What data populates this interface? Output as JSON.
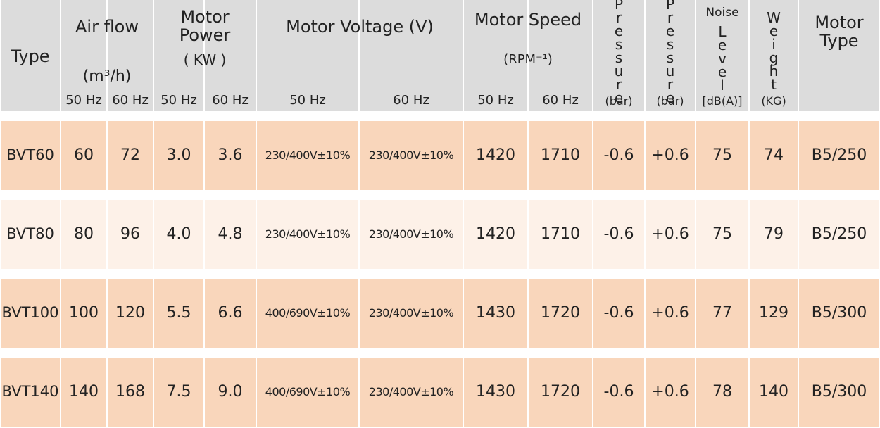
{
  "header": {
    "type": "Type",
    "air_flow": "Air flow",
    "air_flow_unit": "(m³/h)",
    "motor_power": "Motor Power",
    "motor_power_unit": "( KW )",
    "motor_voltage": "Motor Voltage (V)",
    "motor_speed": "Motor Speed",
    "motor_speed_unit": "(RPM⁻¹)",
    "pressure_1": "Pressure",
    "pressure_1_unit": "(bar)",
    "pressure_2": "Pressure",
    "pressure_2_unit": "(bar)",
    "noise": "Noise",
    "noise_level": "Level",
    "noise_unit": "[dB(A)]",
    "weight": "Weight",
    "weight_unit": "(KG)",
    "motor_type": "Motor Type",
    "frequencies": [
      "50 Hz",
      "60 Hz",
      "50 Hz",
      "60 Hz",
      "50 Hz",
      "60 Hz",
      "50 Hz",
      "60 Hz"
    ]
  },
  "table": {
    "rows": [
      [
        "BVT60",
        "60",
        "72",
        "3.0",
        "3.6",
        "230/400V±10%",
        "230/400V±10%",
        "1420",
        "1710",
        "-0.6",
        "+0.6",
        "75",
        "74",
        "B5/250"
      ],
      [
        "BVT80",
        "80",
        "96",
        "4.0",
        "4.8",
        "230/400V±10%",
        "230/400V±10%",
        "1420",
        "1710",
        "-0.6",
        "+0.6",
        "75",
        "79",
        "B5/250"
      ],
      [
        "BVT100",
        "100",
        "120",
        "5.5",
        "6.6",
        "400/690V±10%",
        "230/400V±10%",
        "1430",
        "1720",
        "-0.6",
        "+0.6",
        "77",
        "129",
        "B5/300"
      ],
      [
        "BVT140",
        "140",
        "168",
        "7.5",
        "9.0",
        "400/690V±10%",
        "230/400V±10%",
        "1430",
        "1720",
        "-0.6",
        "+0.6",
        "78",
        "140",
        "B5/300"
      ]
    ]
  }
}
